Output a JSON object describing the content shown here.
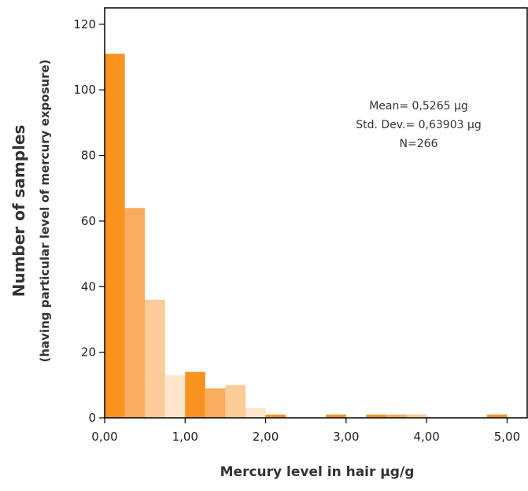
{
  "chart_data": {
    "type": "bar",
    "title": "",
    "xlabel": "Mercury level in hair µg/g",
    "ylabel": "Number of samples",
    "ylabel_sub": "(having particular level of mercury exposure)",
    "xlim": [
      0,
      5.25
    ],
    "ylim": [
      0,
      125
    ],
    "xticks": [
      0,
      1,
      2,
      3,
      4,
      5
    ],
    "xtick_labels": [
      "0,00",
      "1,00",
      "2,00",
      "3,00",
      "4,00",
      "5,00"
    ],
    "yticks": [
      0,
      20,
      40,
      60,
      80,
      100,
      120
    ],
    "ytick_labels": [
      "0",
      "20",
      "40",
      "60",
      "80",
      "100",
      "120"
    ],
    "grid": false,
    "bin_width": 0.25,
    "bins": [
      {
        "x0": 0.0,
        "x1": 0.25,
        "count": 111,
        "color": "#f7931e"
      },
      {
        "x0": 0.25,
        "x1": 0.5,
        "count": 64,
        "color": "#f9ad5c"
      },
      {
        "x0": 0.5,
        "x1": 0.75,
        "count": 36,
        "color": "#fbcb98"
      },
      {
        "x0": 0.75,
        "x1": 1.0,
        "count": 13,
        "color": "#fde6cc"
      },
      {
        "x0": 1.0,
        "x1": 1.25,
        "count": 14,
        "color": "#f7931e"
      },
      {
        "x0": 1.25,
        "x1": 1.5,
        "count": 9,
        "color": "#f9ad5c"
      },
      {
        "x0": 1.5,
        "x1": 1.75,
        "count": 10,
        "color": "#fbcb98"
      },
      {
        "x0": 1.75,
        "x1": 2.0,
        "count": 3,
        "color": "#fde6cc"
      },
      {
        "x0": 2.0,
        "x1": 2.25,
        "count": 1,
        "color": "#f7931e"
      },
      {
        "x0": 2.25,
        "x1": 2.5,
        "count": 0,
        "color": "#f9ad5c"
      },
      {
        "x0": 2.5,
        "x1": 2.75,
        "count": 0,
        "color": "#fbcb98"
      },
      {
        "x0": 2.75,
        "x1": 3.0,
        "count": 1,
        "color": "#f7931e"
      },
      {
        "x0": 3.0,
        "x1": 3.25,
        "count": 0,
        "color": "#f9ad5c"
      },
      {
        "x0": 3.25,
        "x1": 3.5,
        "count": 1,
        "color": "#f7931e"
      },
      {
        "x0": 3.5,
        "x1": 3.75,
        "count": 1,
        "color": "#f9ad5c"
      },
      {
        "x0": 3.75,
        "x1": 4.0,
        "count": 1,
        "color": "#fbcb98"
      },
      {
        "x0": 4.0,
        "x1": 4.25,
        "count": 0,
        "color": "#f7931e"
      },
      {
        "x0": 4.25,
        "x1": 4.5,
        "count": 0,
        "color": "#f7931e"
      },
      {
        "x0": 4.5,
        "x1": 4.75,
        "count": 0,
        "color": "#f7931e"
      },
      {
        "x0": 4.75,
        "x1": 5.0,
        "count": 1,
        "color": "#f7931e"
      }
    ],
    "annotations": [
      "Mean= 0,5265 µg",
      "Std. Dev.= 0,63903 µg",
      "N=266"
    ]
  }
}
